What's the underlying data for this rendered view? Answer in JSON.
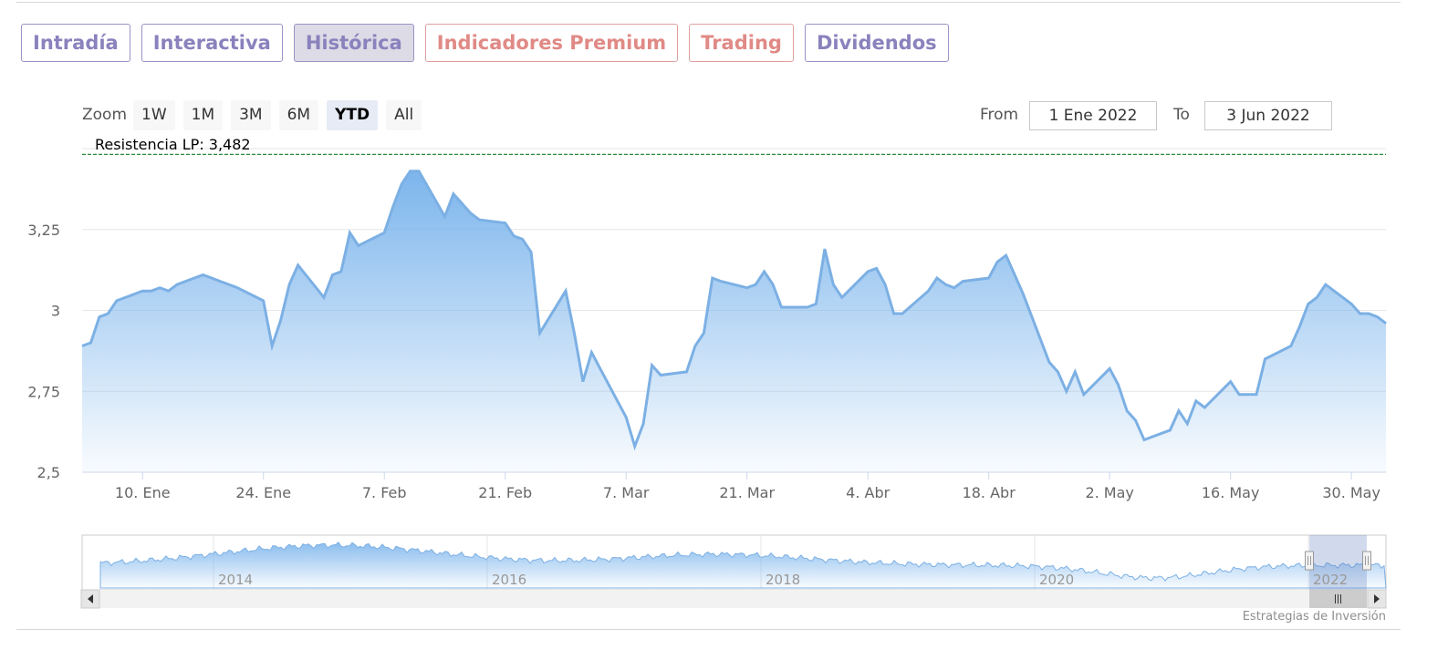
{
  "tabs": [
    {
      "label": "Intradía",
      "style": "normal"
    },
    {
      "label": "Interactiva",
      "style": "normal"
    },
    {
      "label": "Histórica",
      "style": "active"
    },
    {
      "label": "Indicadores Premium",
      "style": "premium"
    },
    {
      "label": "Trading",
      "style": "premium"
    },
    {
      "label": "Dividendos",
      "style": "normal"
    }
  ],
  "zoom": {
    "label": "Zoom",
    "buttons": [
      "1W",
      "1M",
      "3M",
      "6M",
      "YTD",
      "All"
    ],
    "selected": "YTD"
  },
  "range": {
    "from_label": "From",
    "from_value": "1 Ene 2022",
    "to_label": "To",
    "to_value": "3 Jun 2022"
  },
  "credit": "Estrategias de Inversión",
  "colors": {
    "line": "#7cb0e4",
    "fill_top": "#7cb5ec",
    "resistance": "#2e8b3e",
    "accent": "#8a82bd",
    "premium": "#e08a86"
  },
  "chart_data": {
    "type": "area",
    "title": "",
    "xlabel": "",
    "ylabel": "",
    "ylim": [
      2.5,
      3.5
    ],
    "y_ticks": [
      2.5,
      2.75,
      3,
      3.25
    ],
    "y_tick_labels": [
      "2,5",
      "2,75",
      "3",
      "3,25"
    ],
    "x_ticks": [
      "2022-01-10",
      "2022-01-24",
      "2022-02-07",
      "2022-02-21",
      "2022-03-07",
      "2022-03-21",
      "2022-04-04",
      "2022-04-18",
      "2022-05-02",
      "2022-05-16",
      "2022-05-30"
    ],
    "x_tick_labels": [
      "10. Ene",
      "24. Ene",
      "7. Feb",
      "21. Feb",
      "7. Mar",
      "21. Mar",
      "4. Abr",
      "18. Abr",
      "2. May",
      "16. May",
      "30. May"
    ],
    "x_range": [
      "2022-01-03",
      "2022-06-03"
    ],
    "grid": true,
    "resistance": {
      "label": "Resistencia LP: 3,482",
      "value": 3.482
    },
    "series": [
      {
        "name": "",
        "x": [
          "2022-01-03",
          "2022-01-04",
          "2022-01-05",
          "2022-01-06",
          "2022-01-07",
          "2022-01-10",
          "2022-01-11",
          "2022-01-12",
          "2022-01-13",
          "2022-01-14",
          "2022-01-17",
          "2022-01-18",
          "2022-01-19",
          "2022-01-20",
          "2022-01-21",
          "2022-01-24",
          "2022-01-25",
          "2022-01-26",
          "2022-01-27",
          "2022-01-28",
          "2022-01-31",
          "2022-02-01",
          "2022-02-02",
          "2022-02-03",
          "2022-02-04",
          "2022-02-07",
          "2022-02-08",
          "2022-02-09",
          "2022-02-10",
          "2022-02-11",
          "2022-02-14",
          "2022-02-15",
          "2022-02-16",
          "2022-02-17",
          "2022-02-18",
          "2022-02-21",
          "2022-02-22",
          "2022-02-23",
          "2022-02-24",
          "2022-02-25",
          "2022-02-28",
          "2022-03-01",
          "2022-03-02",
          "2022-03-03",
          "2022-03-04",
          "2022-03-07",
          "2022-03-08",
          "2022-03-09",
          "2022-03-10",
          "2022-03-11",
          "2022-03-14",
          "2022-03-15",
          "2022-03-16",
          "2022-03-17",
          "2022-03-18",
          "2022-03-21",
          "2022-03-22",
          "2022-03-23",
          "2022-03-24",
          "2022-03-25",
          "2022-03-28",
          "2022-03-29",
          "2022-03-30",
          "2022-03-31",
          "2022-04-01",
          "2022-04-04",
          "2022-04-05",
          "2022-04-06",
          "2022-04-07",
          "2022-04-08",
          "2022-04-11",
          "2022-04-12",
          "2022-04-13",
          "2022-04-14",
          "2022-04-15",
          "2022-04-18",
          "2022-04-19",
          "2022-04-20",
          "2022-04-21",
          "2022-04-22",
          "2022-04-25",
          "2022-04-26",
          "2022-04-27",
          "2022-04-28",
          "2022-04-29",
          "2022-05-02",
          "2022-05-03",
          "2022-05-04",
          "2022-05-05",
          "2022-05-06",
          "2022-05-09",
          "2022-05-10",
          "2022-05-11",
          "2022-05-12",
          "2022-05-13",
          "2022-05-16",
          "2022-05-17",
          "2022-05-18",
          "2022-05-19",
          "2022-05-20",
          "2022-05-23",
          "2022-05-24",
          "2022-05-25",
          "2022-05-26",
          "2022-05-27",
          "2022-05-30",
          "2022-05-31",
          "2022-06-01",
          "2022-06-02",
          "2022-06-03"
        ],
        "values": [
          2.89,
          2.9,
          2.98,
          2.99,
          3.03,
          3.06,
          3.06,
          3.07,
          3.06,
          3.08,
          3.11,
          3.1,
          3.09,
          3.08,
          3.07,
          3.03,
          2.89,
          2.97,
          3.08,
          3.14,
          3.04,
          3.11,
          3.12,
          3.24,
          3.2,
          3.24,
          3.32,
          3.39,
          3.43,
          3.43,
          3.29,
          3.36,
          3.33,
          3.3,
          3.28,
          3.27,
          3.23,
          3.22,
          3.18,
          2.93,
          3.06,
          2.93,
          2.78,
          2.87,
          2.82,
          2.67,
          2.58,
          2.65,
          2.83,
          2.8,
          2.81,
          2.89,
          2.93,
          3.1,
          3.09,
          3.07,
          3.08,
          3.12,
          3.08,
          3.01,
          3.01,
          3.02,
          3.19,
          3.08,
          3.04,
          3.12,
          3.13,
          3.08,
          2.99,
          2.99,
          3.06,
          3.1,
          3.08,
          3.07,
          3.09,
          3.1,
          3.15,
          3.17,
          3.11,
          3.05,
          2.84,
          2.81,
          2.75,
          2.81,
          2.74,
          2.82,
          2.77,
          2.69,
          2.66,
          2.6,
          2.63,
          2.69,
          2.65,
          2.72,
          2.7,
          2.78,
          2.74,
          2.74,
          2.74,
          2.85,
          2.89,
          2.95,
          3.02,
          3.04,
          3.08,
          3.02,
          2.99,
          2.99,
          2.98,
          2.96
        ]
      }
    ],
    "navigator": {
      "labels": [
        "2014",
        "2016",
        "2018",
        "2020",
        "2022"
      ]
    }
  }
}
